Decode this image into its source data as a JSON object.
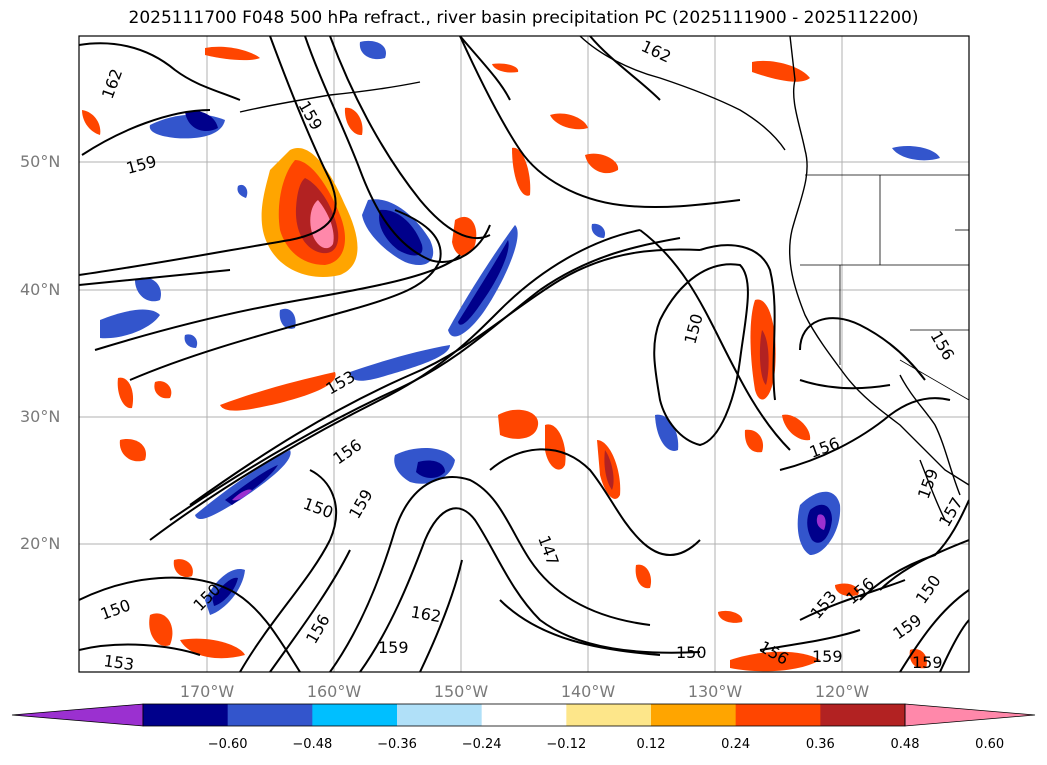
{
  "title": "2025111700 F048 500 hPa refract., river basin precipitation PC (2025111900 - 2025112200)",
  "lat_labels": [
    "50°N",
    "40°N",
    "30°N",
    "20°N"
  ],
  "lon_labels": [
    "170°W",
    "160°W",
    "150°W",
    "140°W",
    "130°W",
    "120°W"
  ],
  "contour_labels": [
    "162",
    "159",
    "159",
    "153",
    "156",
    "150",
    "159",
    "150",
    "150",
    "153",
    "162",
    "159",
    "156",
    "147",
    "150",
    "156",
    "159",
    "156",
    "153",
    "156",
    "150",
    "159",
    "159",
    "157",
    "156",
    "162",
    "159"
  ],
  "colorbar": {
    "colors": [
      "#9b30d0",
      "#00008b",
      "#3355cc",
      "#00bfff",
      "#b0e0f8",
      "#ffffff",
      "#fde68a",
      "#ffa500",
      "#ff4500",
      "#b22222",
      "#ff88aa"
    ],
    "tick_labels": [
      "−0.60",
      "−0.48",
      "−0.36",
      "−0.24",
      "−0.12",
      "0.12",
      "0.24",
      "0.36",
      "0.48",
      "0.60"
    ]
  }
}
